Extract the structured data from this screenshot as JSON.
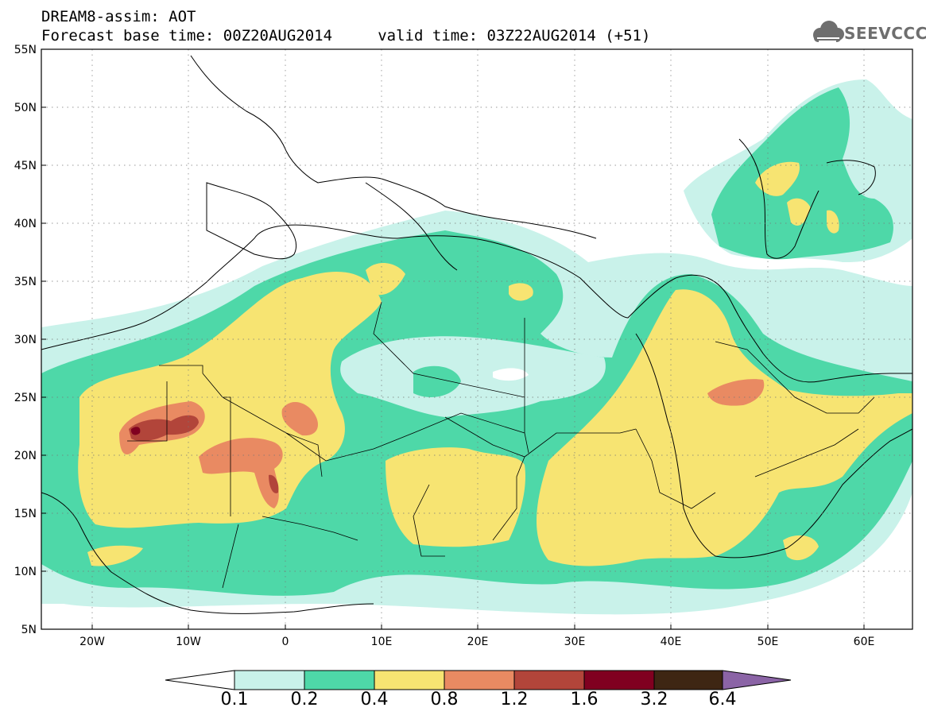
{
  "header": {
    "line1": "DREAM8-assim: AOT",
    "line2": "Forecast base time: 00Z20AUG2014     valid time: 03Z22AUG2014 (+51)"
  },
  "logo": {
    "text": "SEEVCCC",
    "icon": "cloud-icon"
  },
  "map": {
    "projection": "lat-lon",
    "lon_range": [
      -25,
      65
    ],
    "lat_range": [
      5,
      55
    ],
    "grid": "dotted",
    "lat_labels": [
      "55N",
      "50N",
      "45N",
      "40N",
      "35N",
      "30N",
      "25N",
      "20N",
      "15N",
      "10N",
      "5N"
    ],
    "lon_labels": [
      "20W",
      "10W",
      "0",
      "10E",
      "20E",
      "30E",
      "40E",
      "50E",
      "60E"
    ]
  },
  "colorbar": {
    "labels": [
      "0.1",
      "0.2",
      "0.4",
      "0.8",
      "1.2",
      "1.6",
      "3.2",
      "6.4"
    ],
    "colors": [
      "#ffffff",
      "#c9f2ea",
      "#4ed8a8",
      "#f7e472",
      "#e98a62",
      "#b2453a",
      "#800020",
      "#3e2613",
      "#8b64a6"
    ]
  }
}
